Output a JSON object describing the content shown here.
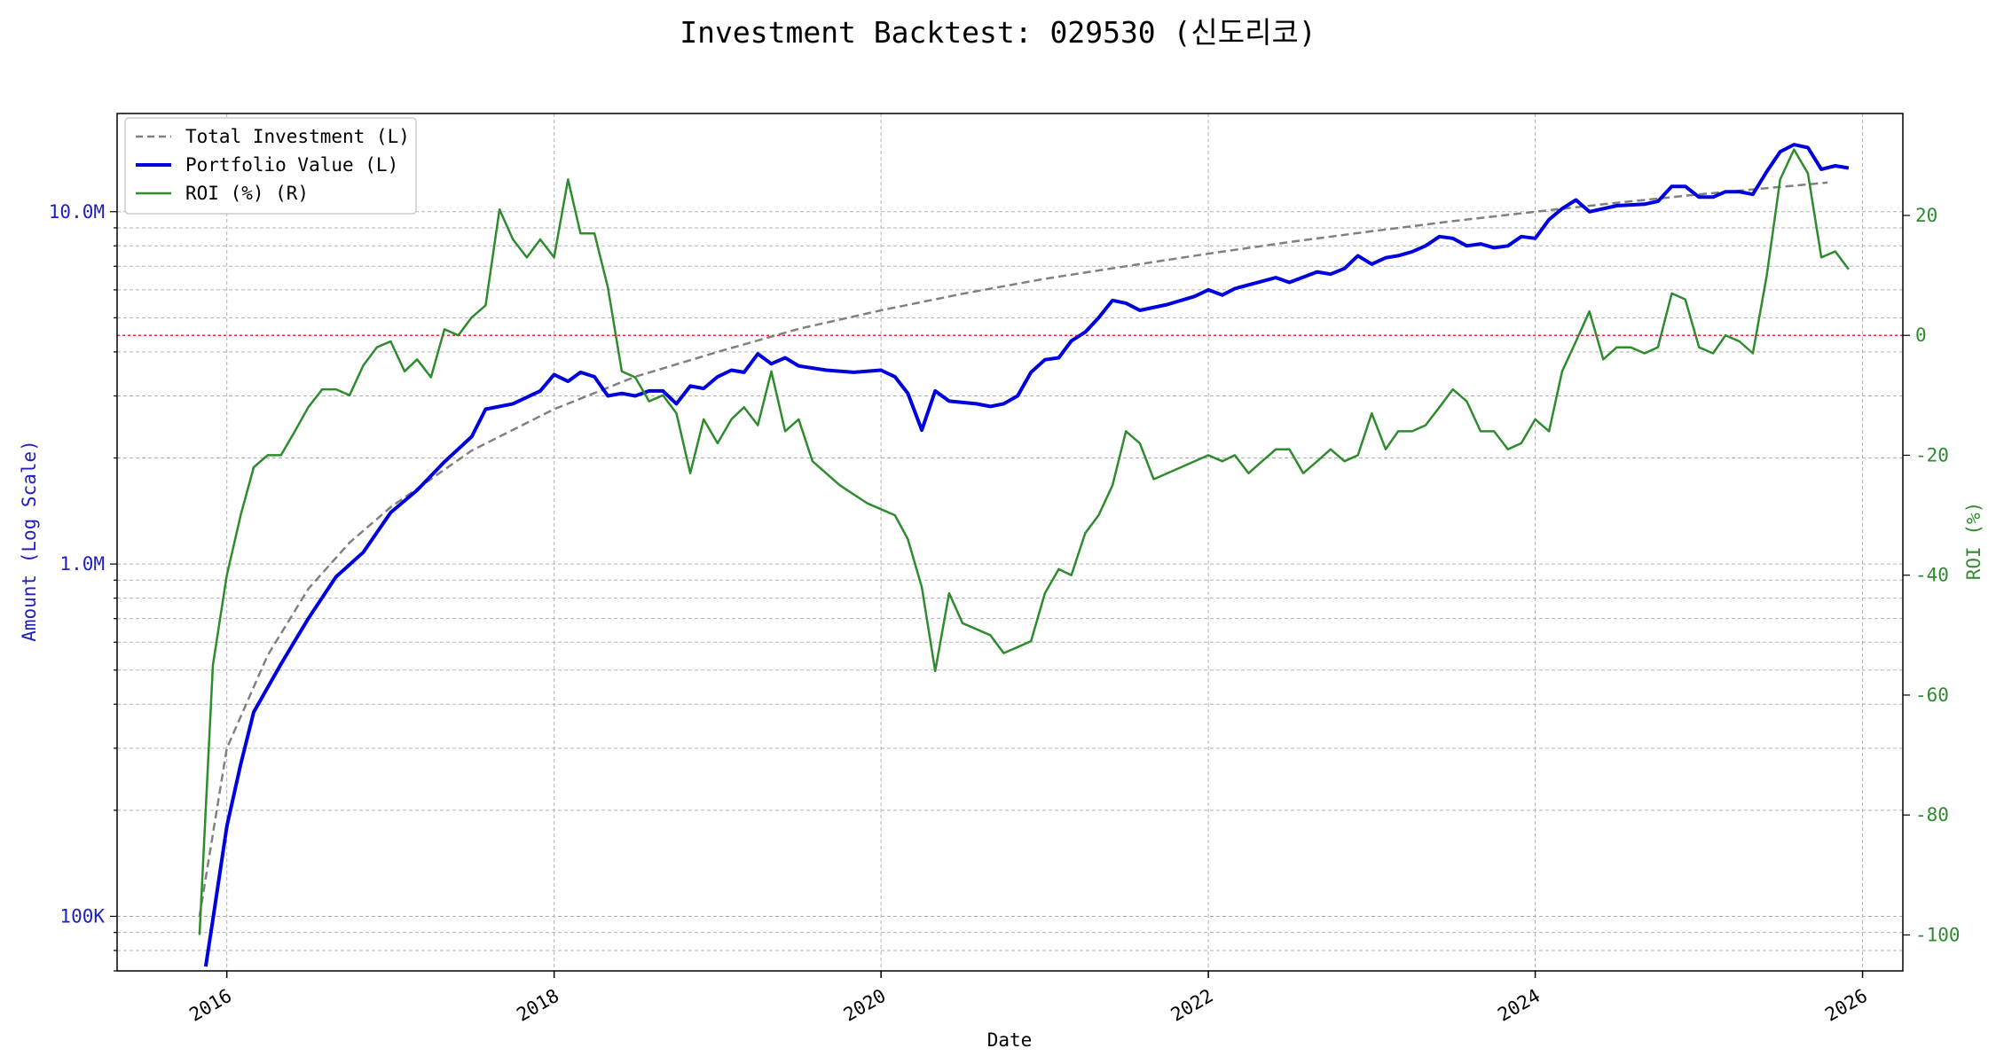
{
  "chart_data": {
    "type": "line",
    "title": "Investment Backtest: 029530 (신도리코)",
    "xlabel": "Date",
    "ylabel_left": "Amount (Log Scale)",
    "ylabel_right": "ROI (%)",
    "x_range": [
      "2015-05-01",
      "2026-04-01"
    ],
    "ylim_left": [
      70000,
      19000000
    ],
    "ylim_right": [
      -106,
      37
    ],
    "left_scale": "log",
    "grid": true,
    "legend_position": "top-left",
    "x_ticks": [
      "2016",
      "2018",
      "2020",
      "2022",
      "2024",
      "2026"
    ],
    "y_left_ticks": [
      {
        "value": 100000,
        "label": "100K"
      },
      {
        "value": 1000000,
        "label": "1.0M"
      },
      {
        "value": 10000000,
        "label": "10.0M"
      }
    ],
    "y_right_ticks": [
      -100,
      -80,
      -60,
      -40,
      -20,
      0,
      20
    ],
    "reference_line": {
      "axis": "right",
      "value": 0,
      "color": "#e03030"
    },
    "colors": {
      "investment": "#808080",
      "portfolio": "#0000dd",
      "roi": "#2e8b2e",
      "left_axis": "#2020c0",
      "right_axis": "#2e8b2e"
    },
    "series": [
      {
        "name": "Total Investment (L)",
        "axis": "left",
        "style": "dashed",
        "points": [
          [
            "2015-11-01",
            100000
          ],
          [
            "2016-01-01",
            300000
          ],
          [
            "2016-04-01",
            550000
          ],
          [
            "2016-07-01",
            850000
          ],
          [
            "2016-10-01",
            1150000
          ],
          [
            "2017-01-01",
            1450000
          ],
          [
            "2017-07-01",
            2100000
          ],
          [
            "2018-01-01",
            2750000
          ],
          [
            "2018-07-01",
            3400000
          ],
          [
            "2019-01-01",
            4000000
          ],
          [
            "2019-07-01",
            4650000
          ],
          [
            "2020-01-01",
            5250000
          ],
          [
            "2020-07-01",
            5850000
          ],
          [
            "2021-01-01",
            6450000
          ],
          [
            "2021-07-01",
            7000000
          ],
          [
            "2022-01-01",
            7600000
          ],
          [
            "2022-07-01",
            8200000
          ],
          [
            "2023-01-01",
            8800000
          ],
          [
            "2023-07-01",
            9400000
          ],
          [
            "2024-01-01",
            10000000
          ],
          [
            "2024-07-01",
            10600000
          ],
          [
            "2025-01-01",
            11200000
          ],
          [
            "2025-10-15",
            12100000
          ]
        ]
      },
      {
        "name": "Portfolio Value (L)",
        "axis": "left",
        "style": "solid",
        "points": [
          [
            "2015-11-15",
            72000
          ],
          [
            "2015-12-01",
            98000
          ],
          [
            "2016-01-01",
            180000
          ],
          [
            "2016-02-01",
            270000
          ],
          [
            "2016-03-01",
            380000
          ],
          [
            "2016-05-01",
            520000
          ],
          [
            "2016-07-01",
            700000
          ],
          [
            "2016-09-01",
            920000
          ],
          [
            "2016-11-01",
            1080000
          ],
          [
            "2017-01-01",
            1400000
          ],
          [
            "2017-03-01",
            1620000
          ],
          [
            "2017-05-01",
            1950000
          ],
          [
            "2017-07-01",
            2300000
          ],
          [
            "2017-08-01",
            2750000
          ],
          [
            "2017-10-01",
            2850000
          ],
          [
            "2017-12-01",
            3100000
          ],
          [
            "2018-01-01",
            3450000
          ],
          [
            "2018-02-01",
            3300000
          ],
          [
            "2018-03-01",
            3500000
          ],
          [
            "2018-04-01",
            3400000
          ],
          [
            "2018-05-01",
            3000000
          ],
          [
            "2018-06-01",
            3050000
          ],
          [
            "2018-07-01",
            3000000
          ],
          [
            "2018-08-01",
            3100000
          ],
          [
            "2018-09-01",
            3100000
          ],
          [
            "2018-10-01",
            2850000
          ],
          [
            "2018-11-01",
            3200000
          ],
          [
            "2018-12-01",
            3150000
          ],
          [
            "2019-01-01",
            3400000
          ],
          [
            "2019-02-01",
            3550000
          ],
          [
            "2019-03-01",
            3500000
          ],
          [
            "2019-04-01",
            3950000
          ],
          [
            "2019-05-01",
            3700000
          ],
          [
            "2019-06-01",
            3850000
          ],
          [
            "2019-07-01",
            3650000
          ],
          [
            "2019-09-01",
            3550000
          ],
          [
            "2019-11-01",
            3500000
          ],
          [
            "2020-01-01",
            3550000
          ],
          [
            "2020-02-01",
            3400000
          ],
          [
            "2020-03-01",
            3050000
          ],
          [
            "2020-04-01",
            2400000
          ],
          [
            "2020-05-01",
            3100000
          ],
          [
            "2020-06-01",
            2900000
          ],
          [
            "2020-08-01",
            2850000
          ],
          [
            "2020-09-01",
            2800000
          ],
          [
            "2020-10-01",
            2850000
          ],
          [
            "2020-11-01",
            3000000
          ],
          [
            "2020-12-01",
            3500000
          ],
          [
            "2021-01-01",
            3800000
          ],
          [
            "2021-02-01",
            3850000
          ],
          [
            "2021-03-01",
            4300000
          ],
          [
            "2021-04-01",
            4550000
          ],
          [
            "2021-05-01",
            5000000
          ],
          [
            "2021-06-01",
            5600000
          ],
          [
            "2021-07-01",
            5500000
          ],
          [
            "2021-08-01",
            5250000
          ],
          [
            "2021-10-01",
            5450000
          ],
          [
            "2021-12-01",
            5750000
          ],
          [
            "2022-01-01",
            6000000
          ],
          [
            "2022-02-01",
            5800000
          ],
          [
            "2022-03-01",
            6050000
          ],
          [
            "2022-04-01",
            6200000
          ],
          [
            "2022-06-01",
            6500000
          ],
          [
            "2022-07-01",
            6300000
          ],
          [
            "2022-09-01",
            6750000
          ],
          [
            "2022-10-01",
            6650000
          ],
          [
            "2022-11-01",
            6900000
          ],
          [
            "2022-12-01",
            7500000
          ],
          [
            "2023-01-01",
            7100000
          ],
          [
            "2023-02-01",
            7400000
          ],
          [
            "2023-03-01",
            7500000
          ],
          [
            "2023-04-01",
            7700000
          ],
          [
            "2023-05-01",
            8000000
          ],
          [
            "2023-06-01",
            8500000
          ],
          [
            "2023-07-01",
            8400000
          ],
          [
            "2023-08-01",
            8000000
          ],
          [
            "2023-09-01",
            8100000
          ],
          [
            "2023-10-01",
            7900000
          ],
          [
            "2023-11-01",
            8000000
          ],
          [
            "2023-12-01",
            8500000
          ],
          [
            "2024-01-01",
            8400000
          ],
          [
            "2024-02-01",
            9500000
          ],
          [
            "2024-03-01",
            10200000
          ],
          [
            "2024-04-01",
            10800000
          ],
          [
            "2024-05-01",
            10000000
          ],
          [
            "2024-07-01",
            10400000
          ],
          [
            "2024-09-01",
            10500000
          ],
          [
            "2024-10-01",
            10700000
          ],
          [
            "2024-11-01",
            11800000
          ],
          [
            "2024-12-01",
            11800000
          ],
          [
            "2025-01-01",
            11000000
          ],
          [
            "2025-02-01",
            11000000
          ],
          [
            "2025-03-01",
            11400000
          ],
          [
            "2025-04-01",
            11400000
          ],
          [
            "2025-05-01",
            11200000
          ],
          [
            "2025-06-01",
            13000000
          ],
          [
            "2025-07-01",
            14800000
          ],
          [
            "2025-08-01",
            15500000
          ],
          [
            "2025-09-01",
            15200000
          ],
          [
            "2025-10-01",
            13200000
          ],
          [
            "2025-11-01",
            13500000
          ],
          [
            "2025-12-01",
            13300000
          ]
        ]
      },
      {
        "name": "ROI (%) (R)",
        "axis": "right",
        "style": "solid",
        "points": [
          [
            "2015-11-01",
            -100
          ],
          [
            "2015-12-01",
            -55
          ],
          [
            "2016-01-01",
            -40
          ],
          [
            "2016-02-01",
            -30
          ],
          [
            "2016-03-01",
            -22
          ],
          [
            "2016-04-01",
            -20
          ],
          [
            "2016-05-01",
            -20
          ],
          [
            "2016-06-01",
            -16
          ],
          [
            "2016-07-01",
            -12
          ],
          [
            "2016-08-01",
            -9
          ],
          [
            "2016-09-01",
            -9
          ],
          [
            "2016-10-01",
            -10
          ],
          [
            "2016-11-01",
            -5
          ],
          [
            "2016-12-01",
            -2
          ],
          [
            "2017-01-01",
            -1
          ],
          [
            "2017-02-01",
            -6
          ],
          [
            "2017-03-01",
            -4
          ],
          [
            "2017-04-01",
            -7
          ],
          [
            "2017-05-01",
            1
          ],
          [
            "2017-06-01",
            0
          ],
          [
            "2017-07-01",
            3
          ],
          [
            "2017-08-01",
            5
          ],
          [
            "2017-09-01",
            21
          ],
          [
            "2017-10-01",
            16
          ],
          [
            "2017-11-01",
            13
          ],
          [
            "2017-12-01",
            16
          ],
          [
            "2018-01-01",
            13
          ],
          [
            "2018-02-01",
            26
          ],
          [
            "2018-03-01",
            17
          ],
          [
            "2018-04-01",
            17
          ],
          [
            "2018-05-01",
            8
          ],
          [
            "2018-06-01",
            -6
          ],
          [
            "2018-07-01",
            -7
          ],
          [
            "2018-08-01",
            -11
          ],
          [
            "2018-09-01",
            -10
          ],
          [
            "2018-10-01",
            -13
          ],
          [
            "2018-11-01",
            -23
          ],
          [
            "2018-12-01",
            -14
          ],
          [
            "2019-01-01",
            -18
          ],
          [
            "2019-02-01",
            -14
          ],
          [
            "2019-03-01",
            -12
          ],
          [
            "2019-04-01",
            -15
          ],
          [
            "2019-05-01",
            -6
          ],
          [
            "2019-06-01",
            -16
          ],
          [
            "2019-07-01",
            -14
          ],
          [
            "2019-08-01",
            -21
          ],
          [
            "2019-10-01",
            -25
          ],
          [
            "2019-12-01",
            -28
          ],
          [
            "2020-01-01",
            -29
          ],
          [
            "2020-02-01",
            -30
          ],
          [
            "2020-03-01",
            -34
          ],
          [
            "2020-04-01",
            -42
          ],
          [
            "2020-05-01",
            -56
          ],
          [
            "2020-06-01",
            -43
          ],
          [
            "2020-07-01",
            -48
          ],
          [
            "2020-09-01",
            -50
          ],
          [
            "2020-10-01",
            -53
          ],
          [
            "2020-11-01",
            -52
          ],
          [
            "2020-12-01",
            -51
          ],
          [
            "2021-01-01",
            -43
          ],
          [
            "2021-02-01",
            -39
          ],
          [
            "2021-03-01",
            -40
          ],
          [
            "2021-04-01",
            -33
          ],
          [
            "2021-05-01",
            -30
          ],
          [
            "2021-06-01",
            -25
          ],
          [
            "2021-07-01",
            -16
          ],
          [
            "2021-08-01",
            -18
          ],
          [
            "2021-09-01",
            -24
          ],
          [
            "2021-11-01",
            -22
          ],
          [
            "2022-01-01",
            -20
          ],
          [
            "2022-02-01",
            -21
          ],
          [
            "2022-03-01",
            -20
          ],
          [
            "2022-04-01",
            -23
          ],
          [
            "2022-05-01",
            -21
          ],
          [
            "2022-06-01",
            -19
          ],
          [
            "2022-07-01",
            -19
          ],
          [
            "2022-08-01",
            -23
          ],
          [
            "2022-09-01",
            -21
          ],
          [
            "2022-10-01",
            -19
          ],
          [
            "2022-11-01",
            -21
          ],
          [
            "2022-12-01",
            -20
          ],
          [
            "2023-01-01",
            -13
          ],
          [
            "2023-02-01",
            -19
          ],
          [
            "2023-03-01",
            -16
          ],
          [
            "2023-04-01",
            -16
          ],
          [
            "2023-05-01",
            -15
          ],
          [
            "2023-06-01",
            -12
          ],
          [
            "2023-07-01",
            -9
          ],
          [
            "2023-08-01",
            -11
          ],
          [
            "2023-09-01",
            -16
          ],
          [
            "2023-10-01",
            -16
          ],
          [
            "2023-11-01",
            -19
          ],
          [
            "2023-12-01",
            -18
          ],
          [
            "2024-01-01",
            -14
          ],
          [
            "2024-02-01",
            -16
          ],
          [
            "2024-03-01",
            -6
          ],
          [
            "2024-04-01",
            -1
          ],
          [
            "2024-05-01",
            4
          ],
          [
            "2024-06-01",
            -4
          ],
          [
            "2024-07-01",
            -2
          ],
          [
            "2024-08-01",
            -2
          ],
          [
            "2024-09-01",
            -3
          ],
          [
            "2024-10-01",
            -2
          ],
          [
            "2024-11-01",
            7
          ],
          [
            "2024-12-01",
            6
          ],
          [
            "2025-01-01",
            -2
          ],
          [
            "2025-02-01",
            -3
          ],
          [
            "2025-03-01",
            0
          ],
          [
            "2025-04-01",
            -1
          ],
          [
            "2025-05-01",
            -3
          ],
          [
            "2025-06-01",
            10
          ],
          [
            "2025-07-01",
            26
          ],
          [
            "2025-08-01",
            31
          ],
          [
            "2025-09-01",
            27
          ],
          [
            "2025-10-01",
            13
          ],
          [
            "2025-11-01",
            14
          ],
          [
            "2025-12-01",
            11
          ]
        ]
      }
    ]
  }
}
